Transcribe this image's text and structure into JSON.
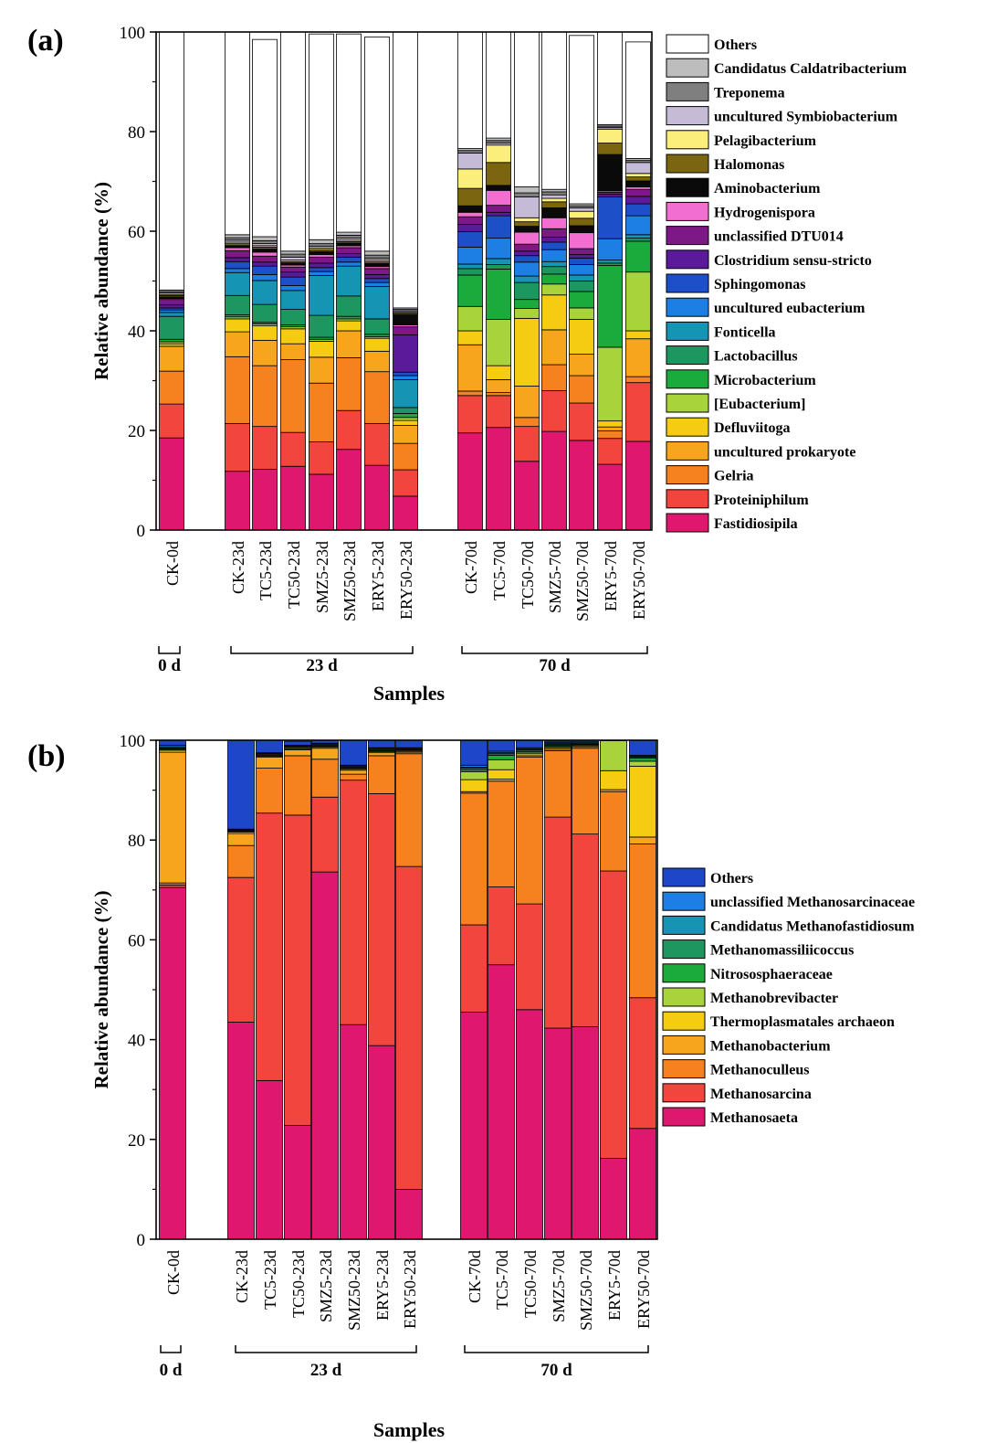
{
  "chart_data": [
    {
      "type": "bar",
      "stacked": true,
      "panel_label": "(a)",
      "ylabel": "Relative abundance (%)",
      "xlabel": "Samples",
      "ylim": [
        0,
        100
      ],
      "yticks": [
        "0",
        "20",
        "40",
        "60",
        "80",
        "100"
      ],
      "categories": [
        "CK-0d",
        "CK-23d",
        "TC5-23d",
        "TC50-23d",
        "SMZ5-23d",
        "SMZ50-23d",
        "ERY5-23d",
        "ERY50-23d",
        "CK-70d",
        "TC5-70d",
        "TC50-70d",
        "SMZ5-70d",
        "SMZ50-70d",
        "ERY5-70d",
        "ERY50-70d"
      ],
      "groups": [
        {
          "label": "0 d",
          "categories": [
            "CK-0d"
          ]
        },
        {
          "label": "23 d",
          "categories": [
            "CK-23d",
            "ERY50-23d"
          ]
        },
        {
          "label": "70 d",
          "categories": [
            "CK-70d",
            "ERY50-70d"
          ]
        }
      ],
      "legend": [
        "Others",
        "Candidatus Caldatribacterium",
        "Treponema",
        "uncultured Symbiobacterium",
        "Pelagibacterium",
        "Halomonas",
        "Aminobacterium",
        "Hydrogenispora",
        "unclassified DTU014",
        "Clostridium sensu-stricto",
        "Sphingomonas",
        "uncultured eubacterium",
        "Fonticella",
        "Lactobacillus",
        "Microbacterium",
        "[Eubacterium]",
        "Defluviitoga",
        "uncultured prokaryote",
        "Gelria",
        "Proteiniphilum",
        "Fastidiosipila"
      ],
      "series": [
        {
          "name": "Fastidiosipila",
          "color": "#e0176e",
          "values": [
            18.5,
            11.8,
            12.2,
            12.8,
            11.2,
            16.2,
            13.0,
            6.8,
            19.5,
            20.6,
            13.8,
            19.8,
            18.0,
            13.2,
            17.8
          ]
        },
        {
          "name": "Proteiniphilum",
          "color": "#f2453e",
          "values": [
            6.8,
            9.6,
            8.6,
            6.8,
            6.5,
            7.8,
            8.4,
            5.3,
            7.5,
            6.4,
            7.0,
            8.2,
            7.5,
            5.2,
            11.8
          ]
        },
        {
          "name": "Gelria",
          "color": "#f5821f",
          "values": [
            6.6,
            13.4,
            12.2,
            14.6,
            11.8,
            10.6,
            10.4,
            5.3,
            0.9,
            0.6,
            1.8,
            5.2,
            5.5,
            1.5,
            1.2
          ]
        },
        {
          "name": "uncultured prokaryote",
          "color": "#f7a51c",
          "values": [
            5.0,
            5.0,
            5.1,
            3.2,
            5.2,
            5.4,
            4.1,
            3.6,
            9.3,
            2.6,
            6.3,
            7.0,
            4.3,
            0.8,
            7.6
          ]
        },
        {
          "name": "Defluviitoga",
          "color": "#f5cc11",
          "values": [
            0.5,
            2.6,
            2.9,
            3.0,
            3.2,
            2.0,
            2.6,
            1.0,
            2.8,
            2.8,
            13.6,
            7.0,
            7.0,
            1.2,
            1.6
          ]
        },
        {
          "name": "[Eubacterium]",
          "color": "#a8d33a",
          "values": [
            0.4,
            0.4,
            0.4,
            0.4,
            0.4,
            0.4,
            0.3,
            0.6,
            4.9,
            9.3,
            2.0,
            2.2,
            2.3,
            14.8,
            11.8
          ]
        },
        {
          "name": "Microbacterium",
          "color": "#1aab3c",
          "values": [
            0.5,
            0.4,
            0.3,
            0.4,
            0.4,
            0.5,
            0.5,
            0.8,
            6.3,
            10.1,
            1.8,
            2.0,
            3.3,
            16.4,
            6.2
          ]
        },
        {
          "name": "Lactobacillus",
          "color": "#1e9660",
          "values": [
            4.6,
            3.9,
            3.6,
            3.1,
            4.4,
            4.1,
            3.1,
            1.2,
            1.3,
            0.9,
            3.4,
            1.5,
            2.1,
            0.5,
            0.6
          ]
        },
        {
          "name": "Fonticella",
          "color": "#1694b4",
          "values": [
            0.8,
            4.6,
            4.8,
            3.8,
            8.0,
            6.0,
            6.5,
            5.6,
            0.9,
            1.2,
            1.3,
            1.0,
            1.2,
            0.6,
            0.7
          ]
        },
        {
          "name": "uncultured eubacterium",
          "color": "#1d7fe3",
          "values": [
            0.5,
            0.8,
            1.2,
            1.0,
            0.8,
            0.8,
            0.8,
            0.8,
            3.4,
            4.1,
            2.8,
            2.4,
            2.1,
            4.3,
            3.8
          ]
        },
        {
          "name": "Sphingomonas",
          "color": "#1d4fc9",
          "values": [
            0.4,
            1.4,
            1.7,
            1.7,
            0.8,
            1.0,
            0.8,
            0.7,
            3.1,
            4.5,
            1.3,
            1.5,
            1.3,
            8.4,
            2.4
          ]
        },
        {
          "name": "Clostridium sensu-stricto",
          "color": "#5a1a9a",
          "values": [
            0.6,
            0.8,
            0.8,
            1.0,
            0.9,
            0.7,
            0.8,
            7.5,
            1.5,
            0.7,
            0.9,
            1.0,
            0.7,
            0.5,
            1.5
          ]
        },
        {
          "name": "unclassified DTU014",
          "color": "#7f1887",
          "values": [
            1.1,
            1.4,
            1.2,
            1.0,
            1.2,
            1.2,
            1.2,
            1.6,
            1.5,
            1.4,
            1.4,
            1.7,
            1.2,
            0.4,
            1.4
          ]
        },
        {
          "name": "Hydrogenispora",
          "color": "#f26ed0",
          "values": [
            0.2,
            0.6,
            0.8,
            0.4,
            0.5,
            0.4,
            0.4,
            0.4,
            0.9,
            3.0,
            2.4,
            2.2,
            3.2,
            0.3,
            0.5
          ]
        },
        {
          "name": "Aminobacterium",
          "color": "#0a0a0a",
          "values": [
            0.3,
            0.4,
            0.6,
            0.4,
            0.6,
            0.5,
            0.6,
            2.0,
            1.3,
            1.0,
            1.2,
            2.0,
            1.4,
            7.3,
            1.2
          ]
        },
        {
          "name": "Halomonas",
          "color": "#7c6510",
          "values": [
            0.3,
            0.4,
            0.4,
            0.3,
            0.4,
            0.3,
            0.4,
            0.3,
            3.5,
            4.6,
            0.9,
            1.2,
            1.5,
            2.3,
            0.8
          ]
        },
        {
          "name": "Pelagibacterium",
          "color": "#fbee7b",
          "values": [
            0.2,
            0.3,
            0.3,
            0.3,
            0.3,
            0.3,
            0.3,
            0.2,
            3.9,
            3.5,
            0.8,
            0.7,
            1.4,
            2.8,
            0.7
          ]
        },
        {
          "name": "uncultured Symbiobacterium",
          "color": "#c6bbd6",
          "values": [
            0.3,
            0.4,
            0.4,
            0.6,
            0.4,
            0.4,
            0.4,
            0.3,
            3.2,
            0.4,
            4.2,
            0.7,
            0.7,
            0.3,
            2.2
          ]
        },
        {
          "name": "Treponema",
          "color": "#7f7f7f",
          "values": [
            0.3,
            0.5,
            0.6,
            0.6,
            0.5,
            0.6,
            0.6,
            0.3,
            0.5,
            0.5,
            0.8,
            0.6,
            0.4,
            0.3,
            0.4
          ]
        },
        {
          "name": "Candidatus Caldatribacterium",
          "color": "#bdbdbd",
          "values": [
            0.3,
            0.6,
            0.8,
            0.6,
            0.8,
            0.6,
            0.8,
            0.3,
            0.4,
            0.5,
            1.2,
            0.5,
            0.4,
            0.3,
            0.4
          ]
        },
        {
          "name": "Others",
          "color": "#ffffff",
          "values": [
            51.8,
            40.7,
            39.6,
            44.8,
            41.3,
            39.8,
            43.0,
            55.4,
            24.4,
            21.3,
            31.3,
            32.6,
            33.8,
            18.8,
            23.4
          ]
        }
      ]
    },
    {
      "type": "bar",
      "stacked": true,
      "panel_label": "(b)",
      "ylabel": "Relative abundance (%)",
      "xlabel": "Samples",
      "ylim": [
        0,
        100
      ],
      "yticks": [
        "0",
        "20",
        "40",
        "60",
        "80",
        "100"
      ],
      "categories": [
        "CK-0d",
        "CK-23d",
        "TC5-23d",
        "TC50-23d",
        "SMZ5-23d",
        "SMZ50-23d",
        "ERY5-23d",
        "ERY50-23d",
        "CK-70d",
        "TC5-70d",
        "TC50-70d",
        "SMZ5-70d",
        "SMZ50-70d",
        "ERY5-70d",
        "ERY50-70d"
      ],
      "groups": [
        {
          "label": "0 d",
          "categories": [
            "CK-0d"
          ]
        },
        {
          "label": "23 d",
          "categories": [
            "CK-23d",
            "ERY50-23d"
          ]
        },
        {
          "label": "70 d",
          "categories": [
            "CK-70d",
            "ERY50-70d"
          ]
        }
      ],
      "legend": [
        "Others",
        "unclassified Methanosarcinaceae",
        "Candidatus Methanofastidiosum",
        "Methanomassiliicoccus",
        "Nitrososphaeraceae",
        "Methanobrevibacter",
        "Thermoplasmatales archaeon",
        "Methanobacterium",
        "Methanoculleus",
        "Methanosarcina",
        "Methanosaeta"
      ],
      "series": [
        {
          "name": "Methanosaeta",
          "color": "#e0176e",
          "values": [
            70.5,
            43.5,
            31.8,
            22.8,
            73.6,
            43.0,
            38.8,
            10.0,
            45.5,
            55.0,
            46.0,
            42.3,
            42.6,
            16.2,
            22.2
          ]
        },
        {
          "name": "Methanosarcina",
          "color": "#f2453e",
          "values": [
            0.5,
            29.0,
            53.6,
            62.2,
            15.0,
            49.0,
            50.5,
            64.7,
            17.5,
            15.6,
            21.2,
            42.3,
            38.6,
            57.6,
            26.2
          ]
        },
        {
          "name": "Methanoculleus",
          "color": "#f5821f",
          "values": [
            0.4,
            6.4,
            9.0,
            11.9,
            7.6,
            1.2,
            7.6,
            22.6,
            26.4,
            21.2,
            29.4,
            13.3,
            17.2,
            15.9,
            30.8
          ]
        },
        {
          "name": "Methanobacterium",
          "color": "#f7a51c",
          "values": [
            26.2,
            2.4,
            2.2,
            1.2,
            2.2,
            0.8,
            0.6,
            0.3,
            0.3,
            0.4,
            0.3,
            0.3,
            0.3,
            0.4,
            1.4
          ]
        },
        {
          "name": "Thermoplasmatales archaeon",
          "color": "#f5cc11",
          "values": [
            0.4,
            0.3,
            0.2,
            0.2,
            0.2,
            0.2,
            0.2,
            0.2,
            2.4,
            1.9,
            0.4,
            0.3,
            0.2,
            3.8,
            14.2
          ]
        },
        {
          "name": "Methanobrevibacter",
          "color": "#a8d33a",
          "values": [
            0.2,
            0.2,
            0.2,
            0.2,
            0.2,
            0.2,
            0.2,
            0.2,
            1.6,
            2.0,
            0.3,
            0.2,
            0.2,
            6.0,
            1.0
          ]
        },
        {
          "name": "Nitrososphaeraceae",
          "color": "#1aab3c",
          "values": [
            0.1,
            0.1,
            0.1,
            0.1,
            0.1,
            0.1,
            0.1,
            0.1,
            0.4,
            0.9,
            0.2,
            0.2,
            0.1,
            0.1,
            0.6
          ]
        },
        {
          "name": "Methanomassiliicoccus",
          "color": "#1e9660",
          "values": [
            0.2,
            0.1,
            0.2,
            0.2,
            0.2,
            0.2,
            0.2,
            0.2,
            0.3,
            0.3,
            0.3,
            0.2,
            0.2,
            0.1,
            0.2
          ]
        },
        {
          "name": "Candidatus Methanofastidiosum",
          "color": "#1694b4",
          "values": [
            0.2,
            0.1,
            0.1,
            0.1,
            0.2,
            0.2,
            0.2,
            0.1,
            0.2,
            0.2,
            0.2,
            0.2,
            0.2,
            0.1,
            0.2
          ]
        },
        {
          "name": "unclassified Methanosarcinaceae",
          "color": "#1d7fe3",
          "values": [
            0.3,
            0.1,
            0.1,
            0.1,
            0.1,
            0.1,
            0.1,
            0.1,
            0.4,
            0.3,
            0.2,
            0.2,
            0.2,
            0.1,
            0.2
          ]
        },
        {
          "name": "Others",
          "color": "#1e46c8",
          "values": [
            1.0,
            17.8,
            2.5,
            0.8,
            0.6,
            5.0,
            1.5,
            1.5,
            5.0,
            2.2,
            1.5,
            0.3,
            0.0,
            0.0,
            3.0
          ]
        }
      ]
    }
  ]
}
